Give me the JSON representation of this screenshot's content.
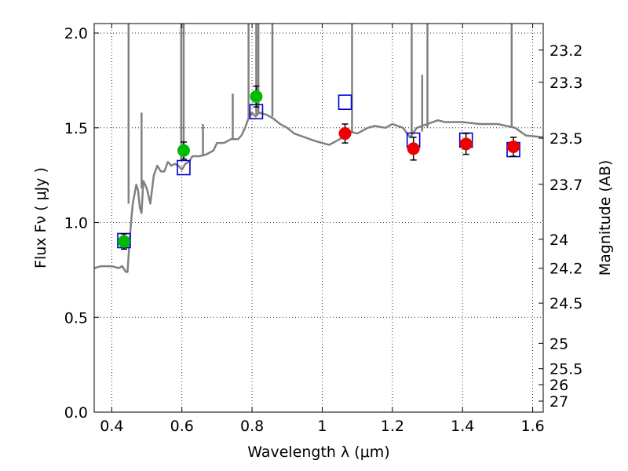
{
  "chart_data": {
    "type": "scatter",
    "xlabel": "Wavelength  λ (μm)",
    "ylabel": "Flux  Fν  ( μJy )",
    "ylabel_right": "Magnitude (AB)",
    "xlim": [
      0.35,
      1.63
    ],
    "ylim": [
      0,
      2.05
    ],
    "grid": true,
    "x_ticks": [
      0.4,
      0.6,
      0.8,
      1.0,
      1.2,
      1.4,
      1.6
    ],
    "x_tick_labels": [
      "0.4",
      "0.6",
      "0.8",
      "1",
      "1.2",
      "1.4",
      "1.6"
    ],
    "y_ticks": [
      0,
      0.5,
      1.0,
      1.5,
      2.0
    ],
    "y_tick_labels": [
      "0.0",
      "0.5",
      "1.0",
      "1.5",
      "2.0"
    ],
    "right_ticks": [
      {
        "label": "23.2",
        "flux": 1.91
      },
      {
        "label": "23.3",
        "flux": 1.74
      },
      {
        "label": "23.5",
        "flux": 1.445
      },
      {
        "label": "23.7",
        "flux": 1.202
      },
      {
        "label": "24",
        "flux": 0.912
      },
      {
        "label": "24.2",
        "flux": 0.759
      },
      {
        "label": "24.5",
        "flux": 0.575
      },
      {
        "label": "25",
        "flux": 0.363
      },
      {
        "label": "25.5",
        "flux": 0.229
      },
      {
        "label": "26",
        "flux": 0.145
      },
      {
        "label": "27",
        "flux": 0.058
      }
    ],
    "series": [
      {
        "kind": "line",
        "color": "#808080",
        "x": [
          0.35,
          0.37,
          0.4,
          0.42,
          0.43,
          0.44,
          0.445,
          0.45,
          0.455,
          0.46,
          0.465,
          0.47,
          0.475,
          0.48,
          0.485,
          0.49,
          0.5,
          0.51,
          0.52,
          0.53,
          0.54,
          0.55,
          0.56,
          0.57,
          0.58,
          0.59,
          0.6,
          0.61,
          0.62,
          0.63,
          0.65,
          0.67,
          0.69,
          0.7,
          0.72,
          0.74,
          0.76,
          0.77,
          0.78,
          0.79,
          0.8,
          0.81,
          0.82,
          0.84,
          0.86,
          0.88,
          0.9,
          0.92,
          0.95,
          0.98,
          1.0,
          1.02,
          1.05,
          1.08,
          1.1,
          1.13,
          1.15,
          1.18,
          1.2,
          1.23,
          1.25,
          1.27,
          1.3,
          1.33,
          1.35,
          1.4,
          1.45,
          1.5,
          1.55,
          1.58,
          1.63
        ],
        "y": [
          0.76,
          0.77,
          0.77,
          0.76,
          0.77,
          0.74,
          0.74,
          0.88,
          1.0,
          1.1,
          1.15,
          1.2,
          1.17,
          1.08,
          1.05,
          1.22,
          1.18,
          1.1,
          1.25,
          1.3,
          1.27,
          1.27,
          1.32,
          1.3,
          1.31,
          1.3,
          1.28,
          1.31,
          1.32,
          1.35,
          1.35,
          1.36,
          1.38,
          1.42,
          1.42,
          1.44,
          1.44,
          1.46,
          1.5,
          1.55,
          1.58,
          1.56,
          1.58,
          1.57,
          1.55,
          1.52,
          1.5,
          1.47,
          1.45,
          1.43,
          1.42,
          1.41,
          1.44,
          1.48,
          1.47,
          1.5,
          1.51,
          1.5,
          1.52,
          1.5,
          1.45,
          1.5,
          1.52,
          1.54,
          1.53,
          1.53,
          1.52,
          1.52,
          1.5,
          1.46,
          1.45
        ]
      },
      {
        "kind": "spikes",
        "color": "#808080",
        "spikes": [
          {
            "x": 0.448,
            "y0": 1.1,
            "y1": 2.05
          },
          {
            "x": 0.485,
            "y0": 1.18,
            "y1": 1.58
          },
          {
            "x": 0.598,
            "y0": 1.34,
            "y1": 2.05
          },
          {
            "x": 0.605,
            "y0": 1.33,
            "y1": 2.05
          },
          {
            "x": 0.66,
            "y0": 1.35,
            "y1": 1.52
          },
          {
            "x": 0.745,
            "y0": 1.44,
            "y1": 1.68
          },
          {
            "x": 0.79,
            "y0": 1.55,
            "y1": 2.05
          },
          {
            "x": 0.812,
            "y0": 1.57,
            "y1": 2.05
          },
          {
            "x": 0.818,
            "y0": 1.57,
            "y1": 2.05
          },
          {
            "x": 0.858,
            "y0": 1.56,
            "y1": 2.05
          },
          {
            "x": 1.085,
            "y0": 1.47,
            "y1": 2.05
          },
          {
            "x": 1.255,
            "y0": 1.45,
            "y1": 2.05
          },
          {
            "x": 1.285,
            "y0": 1.48,
            "y1": 1.78
          },
          {
            "x": 1.3,
            "y0": 1.5,
            "y1": 2.05
          },
          {
            "x": 1.54,
            "y0": 1.5,
            "y1": 2.05
          }
        ]
      },
      {
        "kind": "open-squares",
        "color": "#0000cc",
        "x": [
          0.435,
          0.605,
          0.812,
          1.065,
          1.26,
          1.41,
          1.545
        ],
        "y": [
          0.905,
          1.29,
          1.585,
          1.635,
          1.435,
          1.435,
          1.385
        ]
      },
      {
        "kind": "points",
        "color": "#00bb00",
        "x": [
          0.435,
          0.605,
          0.812
        ],
        "y": [
          0.9,
          1.38,
          1.665
        ],
        "yerr": [
          0.04,
          0.045,
          0.055
        ]
      },
      {
        "kind": "points",
        "color": "#ee0000",
        "x": [
          1.065,
          1.26,
          1.41,
          1.545
        ],
        "y": [
          1.47,
          1.39,
          1.415,
          1.4
        ],
        "yerr": [
          0.05,
          0.06,
          0.055,
          0.05
        ]
      }
    ]
  }
}
